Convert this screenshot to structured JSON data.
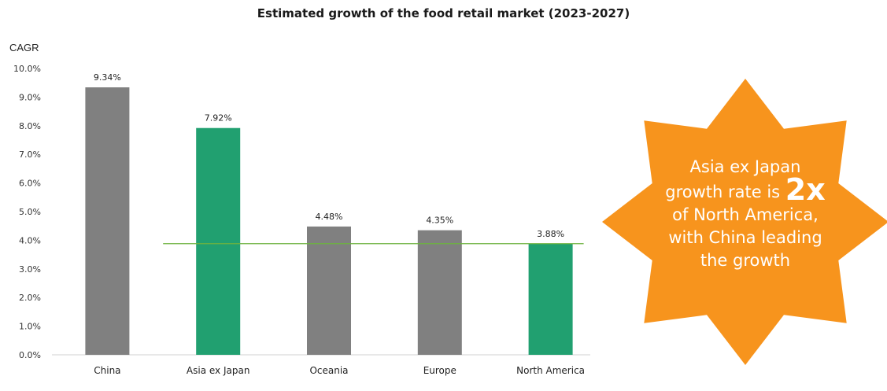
{
  "chart_data": {
    "type": "bar",
    "title": "Estimated growth of the food retail market (2023-2027)",
    "ylabel": "CAGR",
    "xlabel": "",
    "categories": [
      "China",
      "Asia ex Japan",
      "Oceania",
      "Europe",
      "North America"
    ],
    "values": [
      9.34,
      7.92,
      4.48,
      4.35,
      3.88
    ],
    "data_labels": [
      "9.34%",
      "7.92%",
      "4.48%",
      "4.35%",
      "3.88%"
    ],
    "bar_colors": [
      "#808080",
      "#21A070",
      "#808080",
      "#808080",
      "#21A070"
    ],
    "ylim": [
      0,
      10
    ],
    "yticks": [
      0,
      1,
      2,
      3,
      4,
      5,
      6,
      7,
      8,
      9,
      10
    ],
    "ytick_labels": [
      "0.0%",
      "1.0%",
      "2.0%",
      "3.0%",
      "4.0%",
      "5.0%",
      "6.0%",
      "7.0%",
      "8.0%",
      "9.0%",
      "10.0%"
    ],
    "reference_line": {
      "value": 3.88,
      "color": "#6DB33F"
    },
    "grid": false,
    "legend": "none"
  },
  "callout": {
    "line1": "Asia ex Japan",
    "line2_prefix": "growth rate is",
    "line2_big": "2x",
    "line3": "of North America,",
    "line4": "with China leading",
    "line5": "the growth",
    "color": "#F7941D"
  }
}
